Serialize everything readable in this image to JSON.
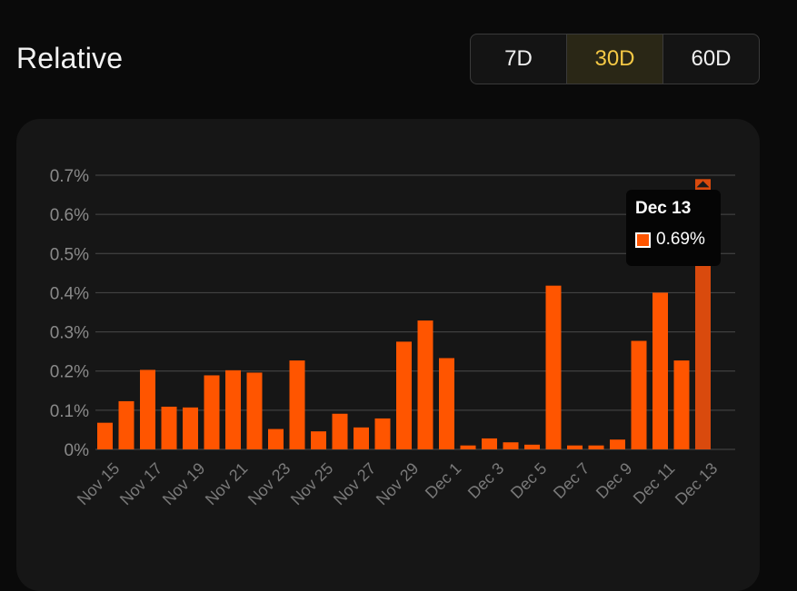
{
  "header": {
    "title": "Relative",
    "ranges": [
      "7D",
      "30D",
      "60D"
    ],
    "active_range": "30D"
  },
  "colors": {
    "bar": "#ff5500",
    "active_bar": "#d94a0d",
    "active_range": "#f4c845"
  },
  "tooltip": {
    "date": "Dec 13",
    "value": "0.69%"
  },
  "chart_data": {
    "type": "bar",
    "title": "Relative",
    "xlabel": "",
    "ylabel": "",
    "ylim": [
      0,
      0.7
    ],
    "yticks": [
      0,
      0.1,
      0.2,
      0.3,
      0.4,
      0.5,
      0.6,
      0.7
    ],
    "ytick_labels": [
      "0%",
      "0.1%",
      "0.2%",
      "0.3%",
      "0.4%",
      "0.5%",
      "0.6%",
      "0.7%"
    ],
    "categories": [
      "Nov 15",
      "Nov 16",
      "Nov 17",
      "Nov 18",
      "Nov 19",
      "Nov 20",
      "Nov 21",
      "Nov 22",
      "Nov 23",
      "Nov 24",
      "Nov 25",
      "Nov 26",
      "Nov 27",
      "Nov 28",
      "Nov 29",
      "Nov 30",
      "Dec 1",
      "Dec 2",
      "Dec 3",
      "Dec 4",
      "Dec 5",
      "Dec 6",
      "Dec 7",
      "Dec 8",
      "Dec 9",
      "Dec 10",
      "Dec 11",
      "Dec 12",
      "Dec 13"
    ],
    "xtick_labels": [
      "Nov 15",
      "Nov 17",
      "Nov 19",
      "Nov 21",
      "Nov 23",
      "Nov 25",
      "Nov 27",
      "Nov 29",
      "Dec 1",
      "Dec 3",
      "Dec 5",
      "Dec 7",
      "Dec 9",
      "Dec 11",
      "Dec 13"
    ],
    "values": [
      0.068,
      0.123,
      0.203,
      0.109,
      0.107,
      0.189,
      0.202,
      0.196,
      0.052,
      0.227,
      0.046,
      0.091,
      0.056,
      0.079,
      0.275,
      0.329,
      0.233,
      0.01,
      0.028,
      0.018,
      0.012,
      0.418,
      0.01,
      0.01,
      0.025,
      0.277,
      0.4,
      0.227,
      0.69
    ],
    "highlight": "Dec 13",
    "grid": true,
    "legend": "none"
  }
}
